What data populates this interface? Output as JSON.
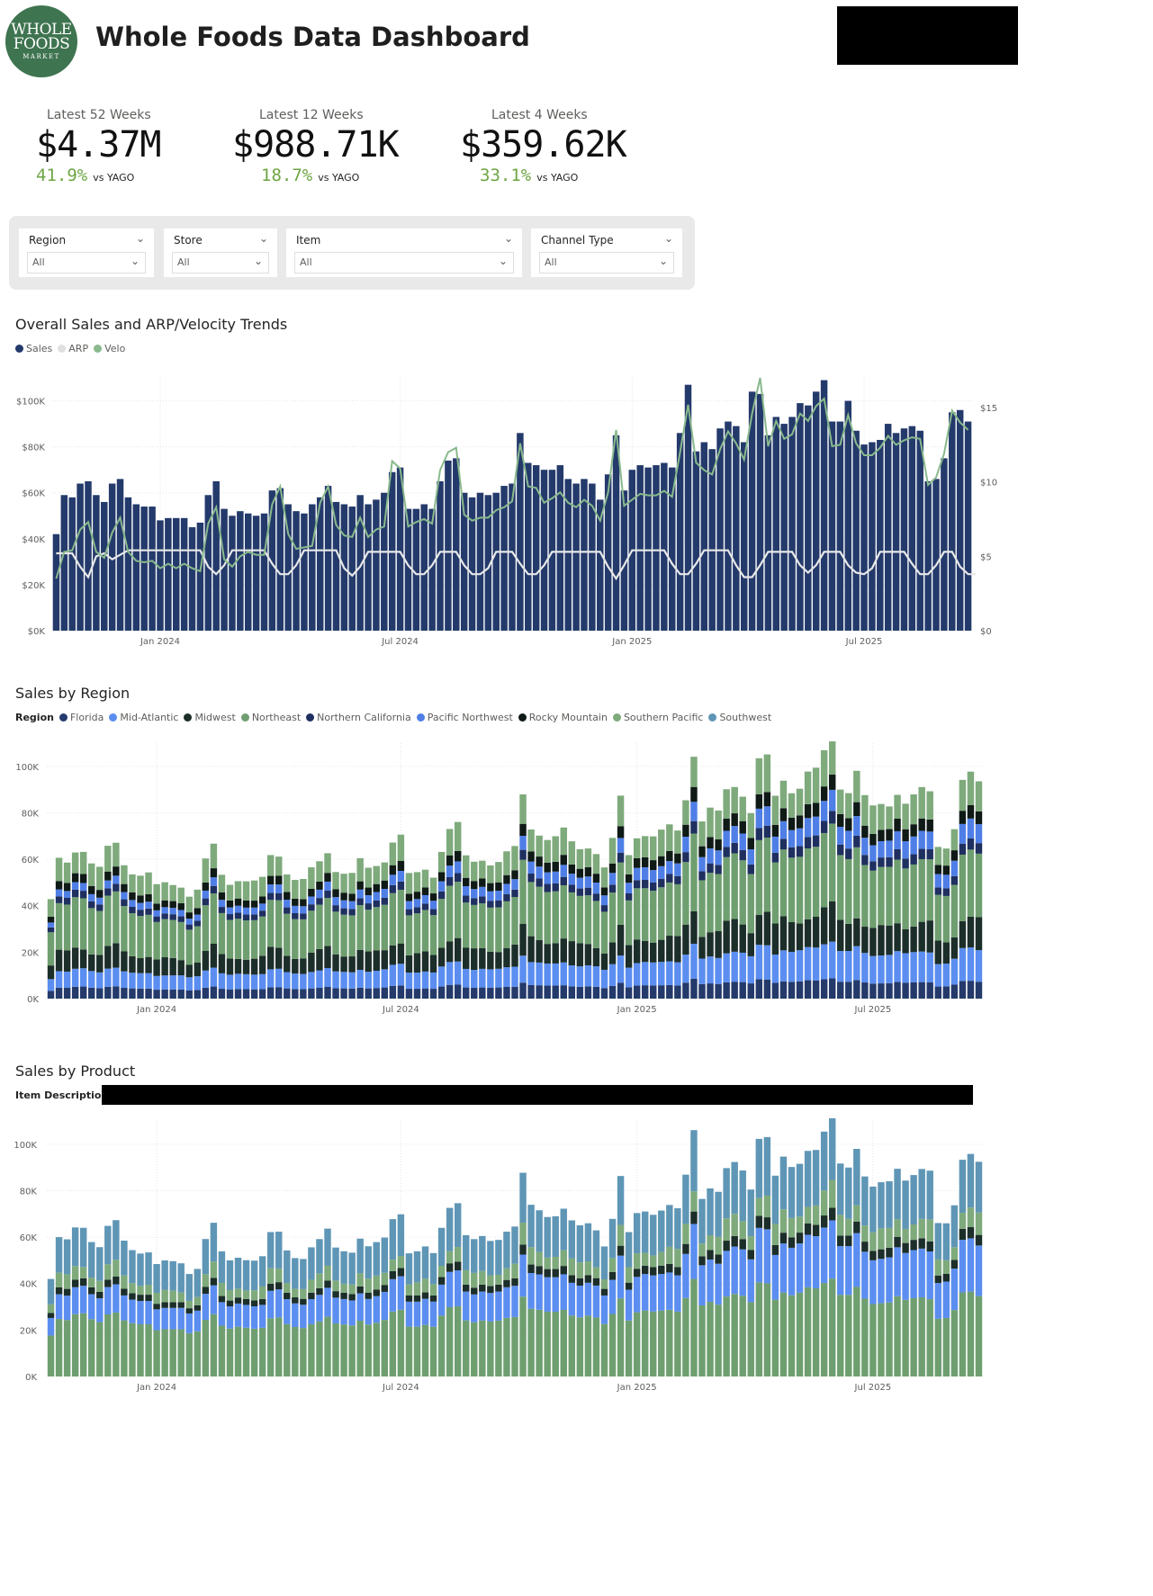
{
  "header": {
    "logo": {
      "line1": "WHOLE",
      "line2": "FOODS",
      "line3": "MARKET"
    },
    "title": "Whole Foods Data Dashboard"
  },
  "kpis": [
    {
      "label": "Latest 52 Weeks",
      "value": "$4.37M",
      "change": "41.9%",
      "vs": "vs YAGO"
    },
    {
      "label": "Latest 12 Weeks",
      "value": "$988.71K",
      "change": "18.7%",
      "vs": "vs YAGO"
    },
    {
      "label": "Latest 4 Weeks",
      "value": "$359.62K",
      "change": "33.1%",
      "vs": "vs YAGO"
    }
  ],
  "filters": [
    {
      "label": "Region",
      "value": "All"
    },
    {
      "label": "Store",
      "value": "All"
    },
    {
      "label": "Item",
      "value": "All"
    },
    {
      "label": "Channel Type",
      "value": "All"
    }
  ],
  "colors": {
    "navy": "#243a6b",
    "blue": "#5b8ef0",
    "dark": "#1c2e29",
    "green": "#6f9f70",
    "steel": "#5f96b6",
    "velo": "#89b98d",
    "arp": "#e8e8e8",
    "kpi_green": "#6da543"
  },
  "chart_data": [
    {
      "type": "bar",
      "title": "Overall Sales and ARP/Velocity Trends",
      "legend": [
        {
          "name": "Sales",
          "color": "#243a6b"
        },
        {
          "name": "ARP",
          "color": "#e0e0e0"
        },
        {
          "name": "Velo",
          "color": "#89b98d"
        }
      ],
      "yticks": [
        "$0K",
        "$20K",
        "$40K",
        "$60K",
        "$80K",
        "$100K"
      ],
      "y2ticks": [
        "$0",
        "$5",
        "$10",
        "$15"
      ],
      "xticks": [
        "Jan 2024",
        "Jul 2024",
        "Jan 2025",
        "Jul 2025"
      ],
      "ylim": [
        0,
        110000
      ],
      "y2lim": [
        0,
        17
      ],
      "series": [
        {
          "name": "Sales",
          "values": [
            42000,
            59000,
            58000,
            64000,
            65000,
            59000,
            56000,
            64000,
            66000,
            58000,
            55000,
            54000,
            54000,
            48000,
            49000,
            49000,
            49000,
            45000,
            47000,
            59000,
            65000,
            53000,
            50000,
            52000,
            51000,
            50000,
            51000,
            61000,
            62000,
            55000,
            52000,
            51000,
            55000,
            58000,
            63000,
            56000,
            55000,
            54000,
            59000,
            55000,
            57000,
            60000,
            69000,
            71000,
            53000,
            53000,
            55000,
            53000,
            65000,
            74000,
            75000,
            60000,
            58000,
            60000,
            59000,
            60000,
            63000,
            64000,
            86000,
            73000,
            72000,
            70000,
            70000,
            72000,
            66000,
            64000,
            66000,
            64000,
            57000,
            68000,
            85000,
            61000,
            70000,
            72000,
            71000,
            72000,
            73000,
            71000,
            86000,
            107000,
            78000,
            82000,
            79000,
            88000,
            91000,
            89000,
            82000,
            104000,
            103000,
            85000,
            93000,
            90000,
            93000,
            99000,
            98000,
            104000,
            109000,
            91000,
            91000,
            100000,
            87000,
            81000,
            82000,
            83000,
            90000,
            86000,
            88000,
            89000,
            87000,
            65000,
            66000,
            75000,
            95000,
            96000,
            91000
          ]
        },
        {
          "name": "ARP",
          "values": [
            5.2,
            5.2,
            5.2,
            4.3,
            3.6,
            5.0,
            5.2,
            4.8,
            5.1,
            5.4,
            5.4,
            5.4,
            5.4,
            5.4,
            5.4,
            5.4,
            5.4,
            5.4,
            5.4,
            4.3,
            3.8,
            4.4,
            5.4,
            5.4,
            5.4,
            5.4,
            5.4,
            4.5,
            3.8,
            3.8,
            4.4,
            5.4,
            5.4,
            5.4,
            5.4,
            5.4,
            4.2,
            3.7,
            4.3,
            5.3,
            5.3,
            5.3,
            5.3,
            5.3,
            4.4,
            3.8,
            3.8,
            4.4,
            5.3,
            5.3,
            5.3,
            4.4,
            3.8,
            3.8,
            4.2,
            5.3,
            5.3,
            5.3,
            4.5,
            3.8,
            3.8,
            4.4,
            5.3,
            5.3,
            5.3,
            5.3,
            5.3,
            5.3,
            5.3,
            4.3,
            3.5,
            4.4,
            5.4,
            5.4,
            5.4,
            5.4,
            5.4,
            4.5,
            3.8,
            3.8,
            4.5,
            5.4,
            5.4,
            5.4,
            5.4,
            4.4,
            3.6,
            3.6,
            4.4,
            5.3,
            5.3,
            5.3,
            5.3,
            4.4,
            3.9,
            4.4,
            5.3,
            5.3,
            5.3,
            4.4,
            3.9,
            3.8,
            4.2,
            5.3,
            5.3,
            5.3,
            5.3,
            4.5,
            3.8,
            3.8,
            4.4,
            5.3,
            5.3,
            4.3,
            3.8,
            3.8
          ]
        },
        {
          "name": "Velo",
          "values": [
            3.5,
            5.3,
            5.4,
            6.8,
            7.3,
            5.3,
            4.9,
            6.6,
            7.6,
            5.3,
            4.7,
            4.6,
            4.7,
            4.2,
            4.5,
            4.2,
            4.5,
            4.2,
            4.0,
            7.2,
            8.3,
            4.8,
            4.3,
            5.0,
            5.3,
            5.1,
            5.1,
            8.5,
            9.7,
            6.5,
            5.5,
            5.6,
            5.7,
            8.6,
            9.7,
            7.1,
            6.4,
            6.3,
            7.6,
            6.3,
            6.8,
            7.0,
            11.4,
            10.9,
            7.0,
            7.3,
            7.5,
            7.2,
            10.8,
            12.0,
            12.3,
            7.8,
            7.4,
            7.6,
            7.6,
            8.1,
            8.3,
            8.7,
            12.6,
            9.7,
            9.6,
            8.6,
            8.9,
            9.3,
            8.6,
            8.3,
            8.8,
            8.4,
            7.4,
            9.3,
            13.5,
            8.4,
            8.8,
            9.2,
            9.1,
            9.1,
            9.4,
            9.0,
            12.0,
            15.2,
            11.3,
            10.8,
            10.5,
            12.2,
            13.4,
            12.6,
            11.5,
            14.6,
            17.0,
            12.4,
            14.1,
            12.9,
            13.2,
            14.6,
            14.1,
            15.1,
            15.6,
            12.4,
            12.5,
            14.5,
            12.6,
            11.8,
            11.8,
            12.3,
            13.1,
            12.5,
            12.8,
            13.0,
            12.9,
            9.8,
            10.3,
            11.9,
            14.8,
            14.0,
            13.5
          ]
        }
      ]
    },
    {
      "type": "bar",
      "stacked": true,
      "title": "Sales by Region",
      "legend_title": "Region",
      "yticks": [
        "0K",
        "20K",
        "40K",
        "60K",
        "80K",
        "100K"
      ],
      "xticks": [
        "Jan 2024",
        "Jul 2024",
        "Jan 2025",
        "Jul 2025"
      ],
      "ylim": [
        0,
        110000
      ],
      "series": [
        {
          "name": "Florida",
          "color": "#253a6e"
        },
        {
          "name": "Mid-Atlantic",
          "color": "#5b8ef0"
        },
        {
          "name": "Midwest",
          "color": "#1c2e29"
        },
        {
          "name": "Northeast",
          "color": "#6f9f70"
        },
        {
          "name": "Northern California",
          "color": "#1f3060"
        },
        {
          "name": "Pacific Northwest",
          "color": "#4f7fe6"
        },
        {
          "name": "Rocky Mountain",
          "color": "#0f1a16"
        },
        {
          "name": "Southern Pacific",
          "color": "#7eaa7c"
        },
        {
          "name": "Southwest",
          "color": "#5f96b6"
        }
      ]
    },
    {
      "type": "bar",
      "stacked": true,
      "title": "Sales by Product",
      "legend_title": "Item Description",
      "yticks": [
        "0K",
        "20K",
        "40K",
        "60K",
        "80K",
        "100K"
      ],
      "xticks": [
        "Jan 2024",
        "Jul 2024",
        "Jan 2025",
        "Jul 2025"
      ],
      "ylim": [
        0,
        110000
      ]
    }
  ]
}
